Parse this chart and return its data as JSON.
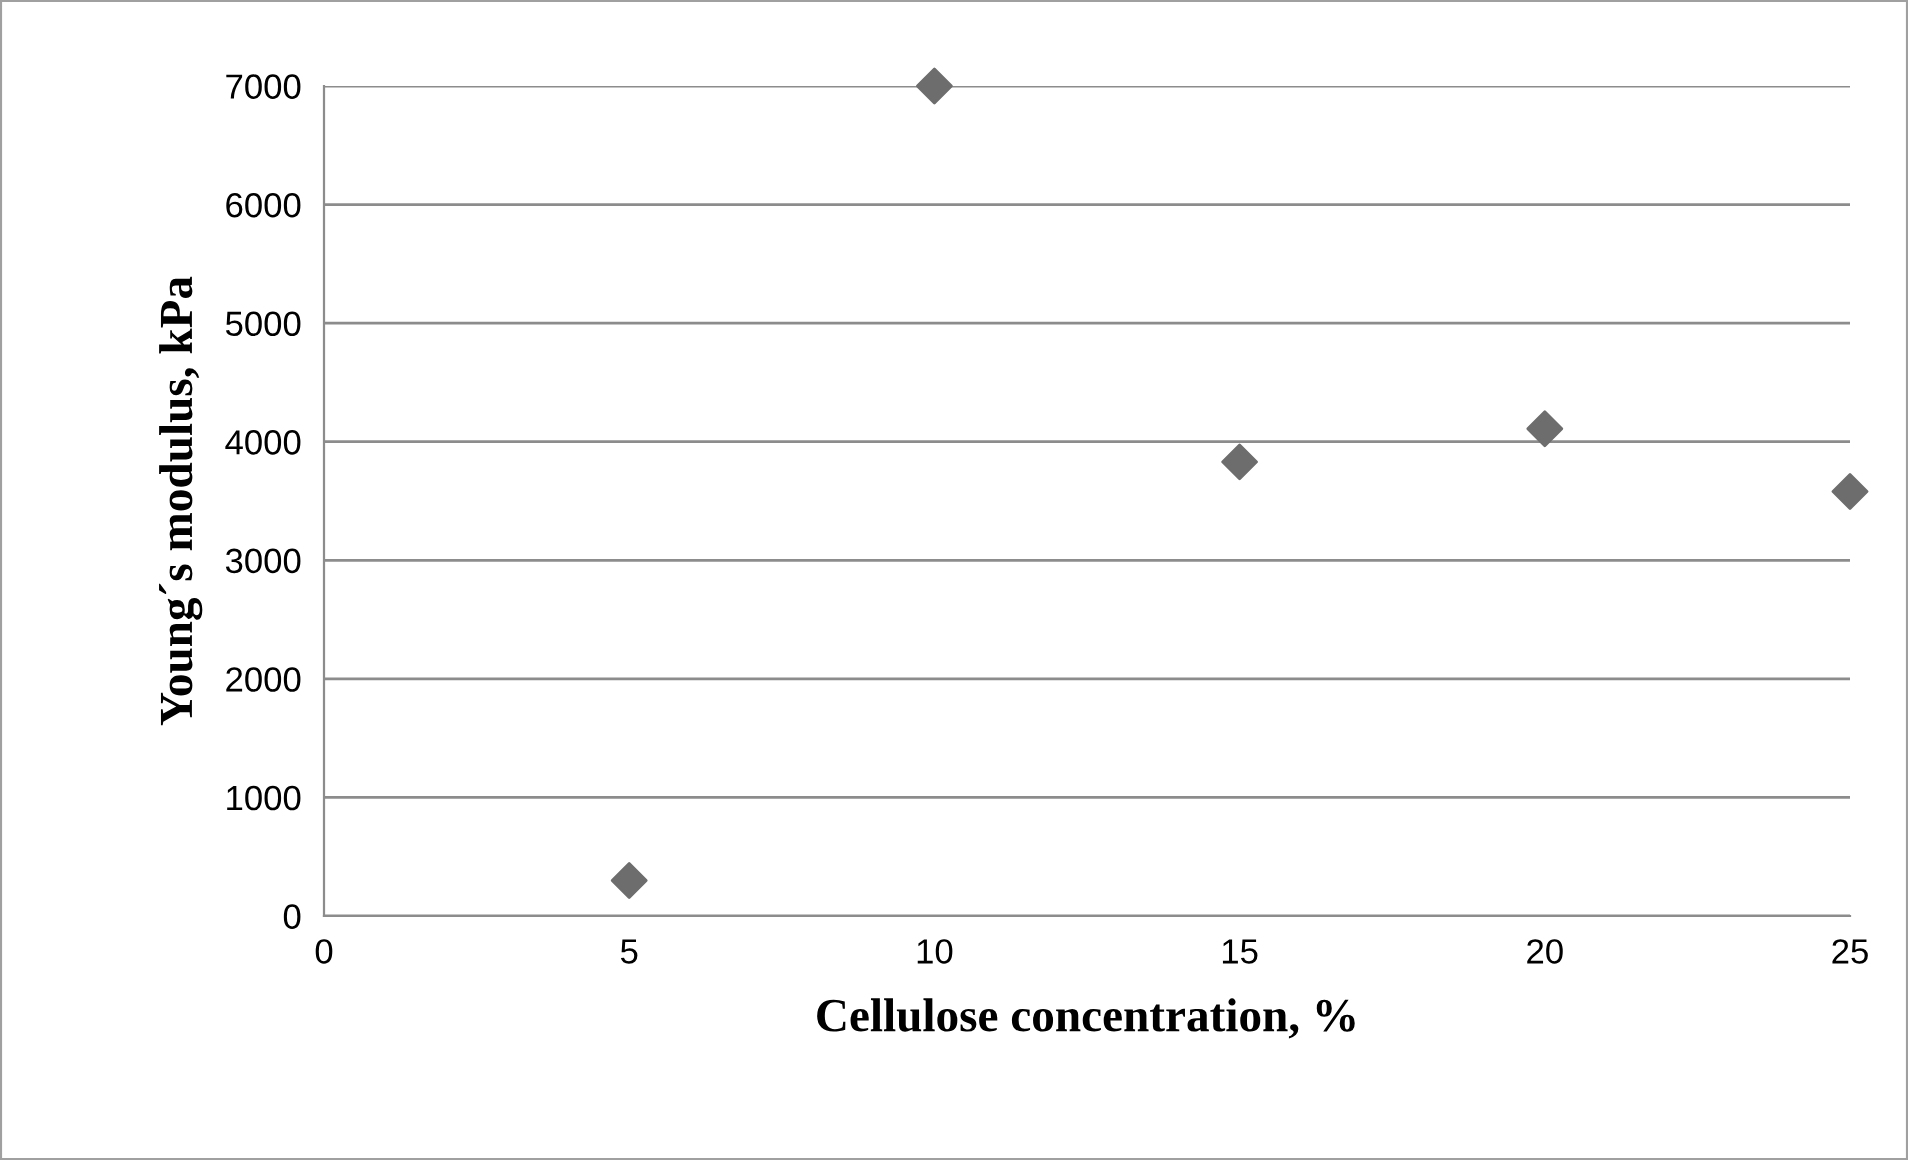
{
  "chart_data": {
    "type": "scatter",
    "xlabel": "Cellulose concentration, %",
    "ylabel": "Young´s modulus, kPa",
    "series": [
      {
        "color": "#6d6d6d",
        "x": [
          5,
          10,
          15,
          20,
          25
        ],
        "values": [
          300,
          7000,
          3830,
          4110,
          3580
        ]
      }
    ],
    "xlim": [
      0,
      25
    ],
    "xticks": [
      0,
      5,
      10,
      15,
      20,
      25
    ],
    "ylim": [
      0,
      7000
    ],
    "yticks": [
      0,
      1000,
      2000,
      3000,
      4000,
      5000,
      6000,
      7000
    ],
    "grid": "y",
    "marker": "diamond"
  }
}
